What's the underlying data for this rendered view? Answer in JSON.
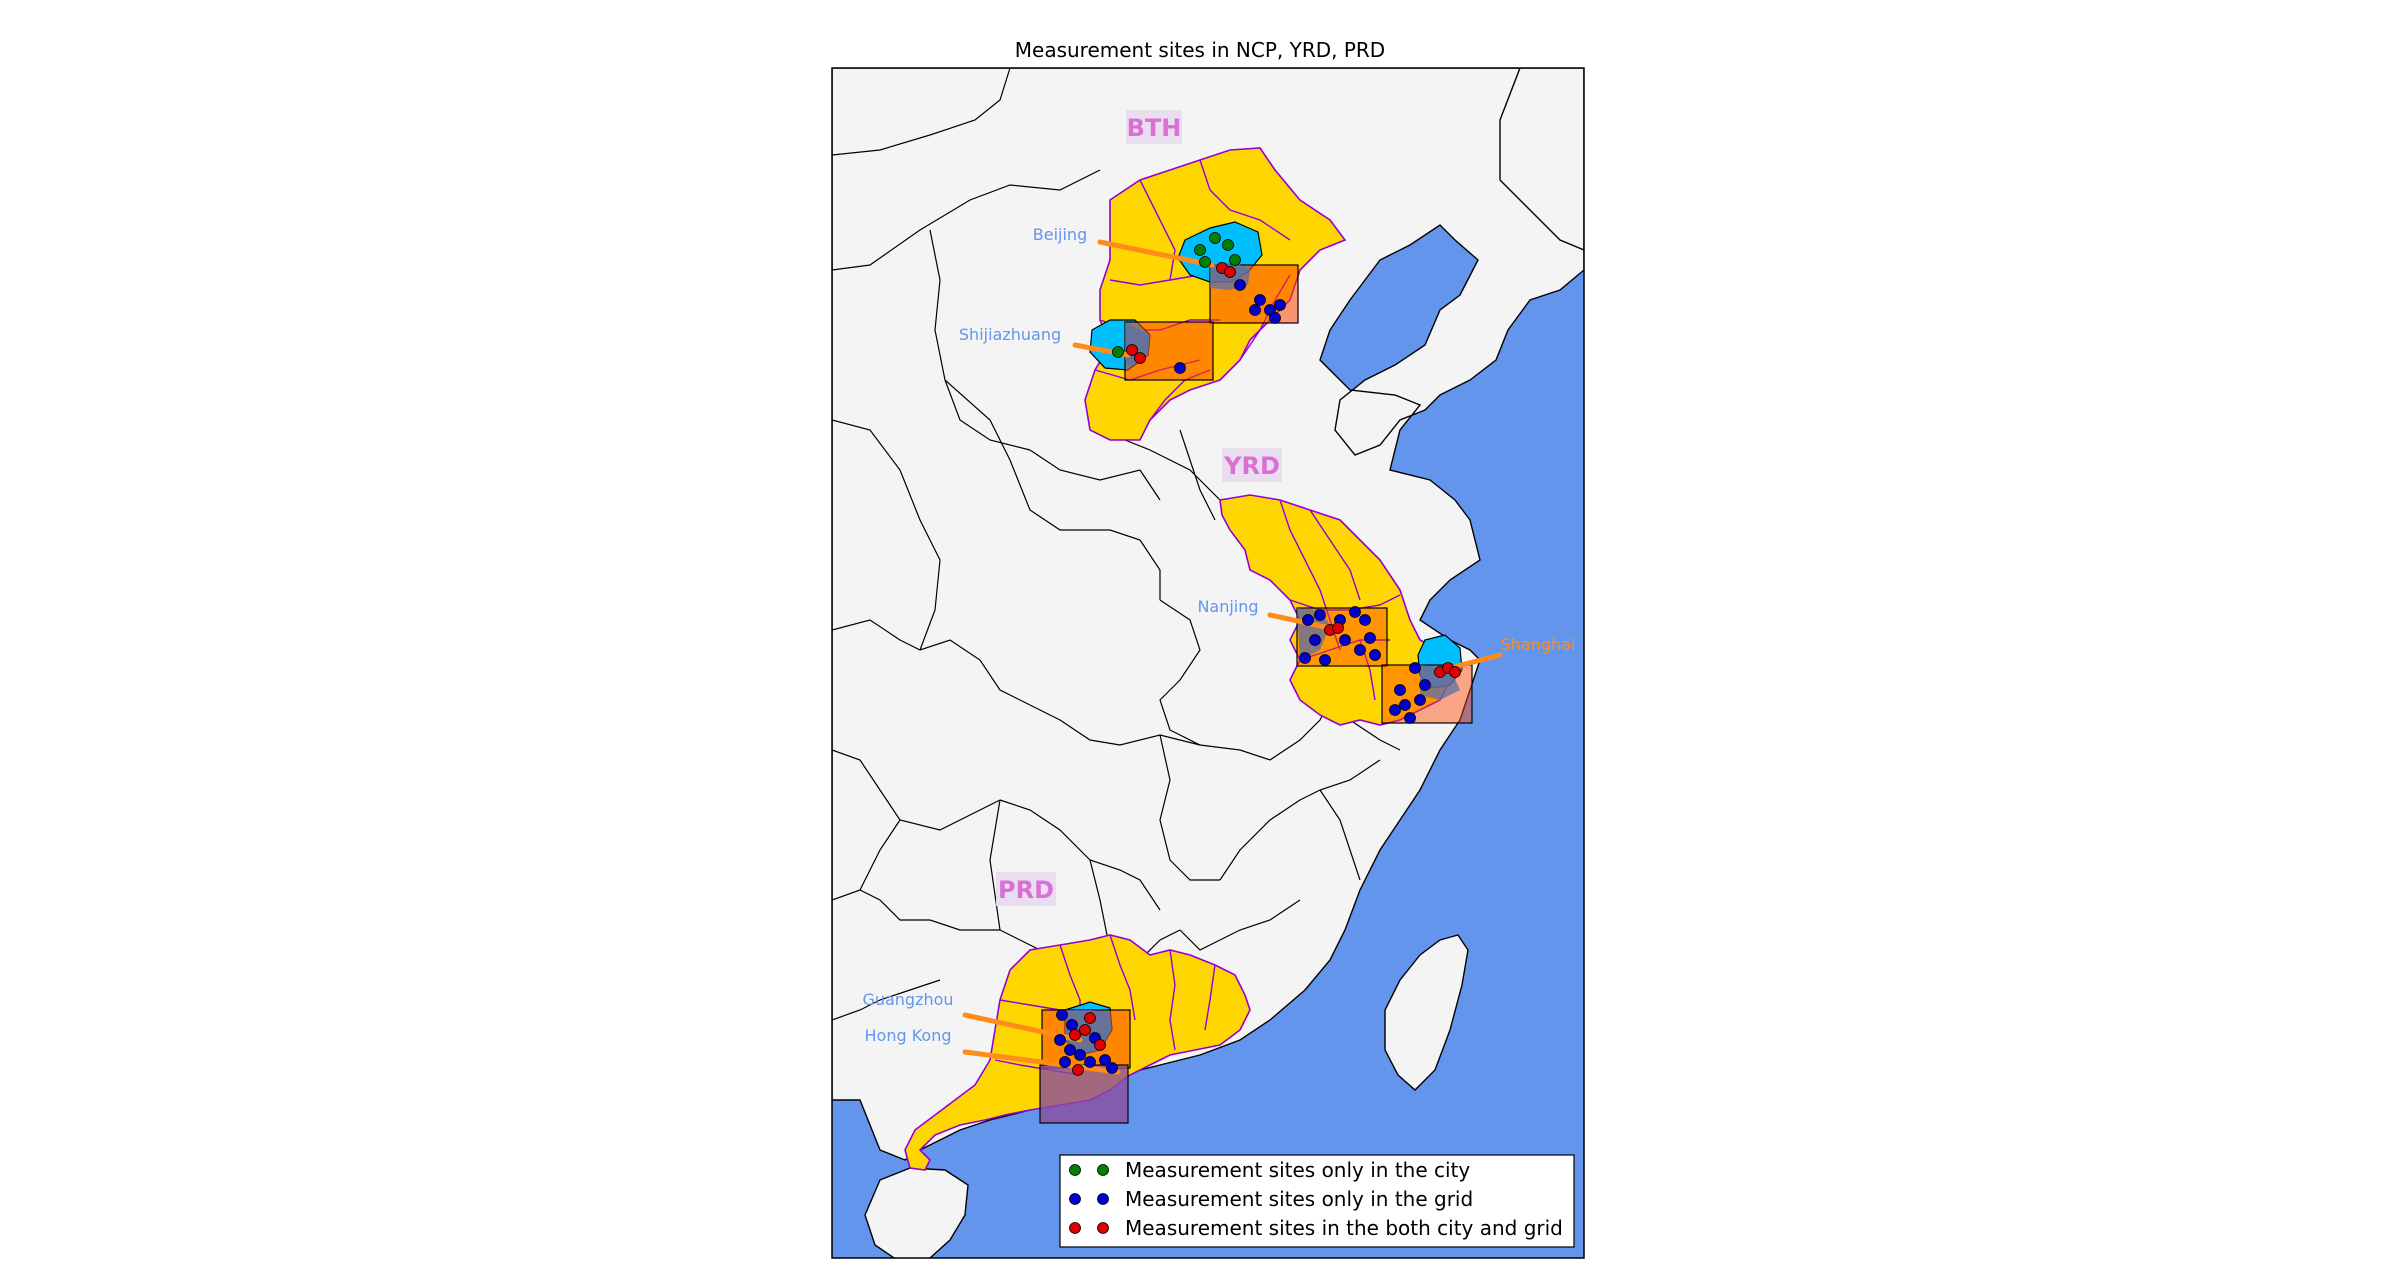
{
  "title": "Measurement sites in NCP, YRD, PRD",
  "colors": {
    "ocean": "#6495ED",
    "land": "#F4F4F4",
    "region_fill": "#FFD700",
    "region_edge": "#9400D3",
    "city_fill": "#00BFFF",
    "grid_box": "#FF4500",
    "grid_box_overlap": "#8B6FA8",
    "annotation_line": "#FF8C1A",
    "label_blue": "#6495ED",
    "label_orange": "#FF8C1A",
    "region_label": "#DA70D6",
    "marker_city": "#008000",
    "marker_grid": "#0000CD",
    "marker_both": "#E00000"
  },
  "regions": [
    {
      "label": "BTH"
    },
    {
      "label": "YRD"
    },
    {
      "label": "PRD"
    }
  ],
  "cities": [
    {
      "name": "Beijing",
      "color": "#6495ED"
    },
    {
      "name": "Shijiazhuang",
      "color": "#6495ED"
    },
    {
      "name": "Nanjing",
      "color": "#6495ED"
    },
    {
      "name": "Shanghai",
      "color": "#FF8C1A"
    },
    {
      "name": "Guangzhou",
      "color": "#6495ED"
    },
    {
      "name": "Hong Kong",
      "color": "#6495ED"
    }
  ],
  "legend": {
    "items": [
      {
        "label": "Measurement sites only in the city",
        "color": "#008000",
        "icon": "green-dot-icon"
      },
      {
        "label": "Measurement sites only in the grid",
        "color": "#0000CD",
        "icon": "blue-dot-icon"
      },
      {
        "label": "Measurement sites in the both city and grid",
        "color": "#E00000",
        "icon": "red-dot-icon"
      }
    ],
    "placement": "lower-right"
  }
}
